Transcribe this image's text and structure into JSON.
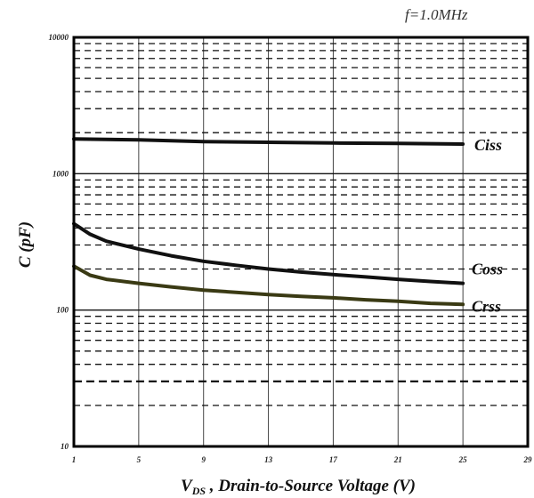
{
  "chart_data": {
    "type": "line",
    "annotation": "f=1.0MHz",
    "xlabel_main": "V",
    "xlabel_sub": "DS",
    "xlabel_rest": " , Drain-to-Source Voltage (V)",
    "ylabel": "C (pF)",
    "x_ticks": [
      1,
      5,
      9,
      13,
      17,
      21,
      25,
      29
    ],
    "x_tick_labels": [
      "1",
      "5",
      "9",
      "13",
      "17",
      "21",
      "25",
      "29"
    ],
    "y_ticks": [
      10,
      100,
      1000,
      10000
    ],
    "y_tick_labels": [
      "10",
      "100",
      "1000",
      "10000"
    ],
    "xlim": [
      1,
      29
    ],
    "ylim": [
      10,
      10000
    ],
    "yscale": "log",
    "grid": true,
    "colors": {
      "Ciss": "#111111",
      "Coss": "#111111",
      "Crss": "#3a3a14",
      "grid": "#111111",
      "frame": "#000000"
    },
    "series": [
      {
        "name": "Ciss",
        "x": [
          1,
          5,
          9,
          13,
          17,
          21,
          25
        ],
        "values": [
          1800,
          1770,
          1720,
          1700,
          1680,
          1670,
          1650
        ]
      },
      {
        "name": "Coss",
        "x": [
          1,
          2,
          3,
          5,
          7,
          9,
          11,
          13,
          15,
          17,
          19,
          21,
          23,
          25
        ],
        "values": [
          430,
          360,
          320,
          280,
          250,
          228,
          213,
          200,
          190,
          182,
          175,
          168,
          162,
          157
        ]
      },
      {
        "name": "Crss",
        "x": [
          1,
          2,
          3,
          5,
          7,
          9,
          11,
          13,
          15,
          17,
          19,
          21,
          23,
          25
        ],
        "values": [
          210,
          180,
          168,
          157,
          148,
          140,
          135,
          130,
          126,
          123,
          119,
          116,
          112,
          110
        ]
      }
    ]
  }
}
